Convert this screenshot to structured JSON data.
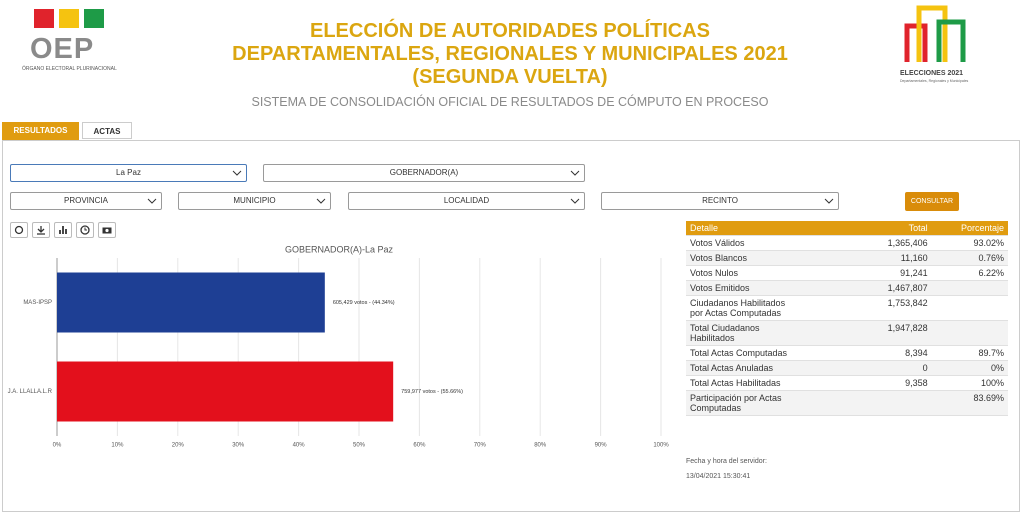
{
  "header": {
    "logo_text": "OEP",
    "logo_subtitle": "ÓRGANO ELECTORAL PLURINACIONAL",
    "title_lines": [
      "ELECCIÓN DE AUTORIDADES POLÍTICAS",
      "DEPARTAMENTALES, REGIONALES Y MUNICIPALES 2021",
      "(SEGUNDA VUELTA)"
    ],
    "subtitle": "SISTEMA DE CONSOLIDACIÓN OFICIAL DE RESULTADOS DE CÓMPUTO EN PROCESO",
    "right_logo_text": "ELECCIONES 2021",
    "right_logo_subtitle": "Departamentales, Regionales y Municipales"
  },
  "tabs": [
    "RESULTADOS",
    "ACTAS"
  ],
  "filters": {
    "departamento": "La Paz",
    "cargo": "GOBERNADOR(A)",
    "provincia": "PROVINCIA",
    "municipio": "MUNICIPIO",
    "localidad": "LOCALIDAD",
    "recinto": "RECINTO",
    "button": "CONSULTAR"
  },
  "chart_data": {
    "type": "hbar",
    "title": "GOBERNADOR(A)-La Paz",
    "categories": [
      "MAS-IPSP",
      "J.A. LLALLA.L.R"
    ],
    "values": [
      44.34,
      55.66
    ],
    "value_labels": [
      "605,429 votos - (44.34%)",
      "759,977 votos - (55.66%)"
    ],
    "colors": [
      "#1e3f94",
      "#e3101c"
    ],
    "xlim": [
      0,
      100
    ],
    "xticks": [
      {
        "value": 0,
        "label": "0%"
      },
      {
        "value": 10,
        "label": "10%"
      },
      {
        "value": 20,
        "label": "20%"
      },
      {
        "value": 30,
        "label": "30%"
      },
      {
        "value": 40,
        "label": "40%"
      },
      {
        "value": 50,
        "label": "50%"
      },
      {
        "value": 60,
        "label": "60%"
      },
      {
        "value": 70,
        "label": "70%"
      },
      {
        "value": 80,
        "label": "80%"
      },
      {
        "value": 90,
        "label": "90%"
      },
      {
        "value": 100,
        "label": "100%"
      }
    ],
    "grid": true
  },
  "table": {
    "headers": [
      "Detalle",
      "Total",
      "Porcentaje"
    ],
    "rows": [
      [
        "Votos Válidos",
        "1,365,406",
        "93.02%"
      ],
      [
        "Votos Blancos",
        "11,160",
        "0.76%"
      ],
      [
        "Votos Nulos",
        "91,241",
        "6.22%"
      ],
      [
        "Votos Emitidos",
        "1,467,807"
      ],
      [
        "Ciudadanos Habilitados por Actas Computadas",
        "1,753,842"
      ],
      [
        "Total Ciudadanos Habilitados",
        "1,947,828"
      ],
      [
        "Total Actas Computadas",
        "8,394",
        "89.7%"
      ],
      [
        "Total Actas Anuladas",
        "0",
        "0%"
      ],
      [
        "Total Actas Habilitadas",
        "9,358",
        "100%"
      ],
      [
        "Participación por Actas Computadas",
        "",
        "83.69%"
      ]
    ]
  },
  "server_time": {
    "label": "Fecha y hora del servidor:",
    "value": "13/04/2021 15:30:41"
  }
}
